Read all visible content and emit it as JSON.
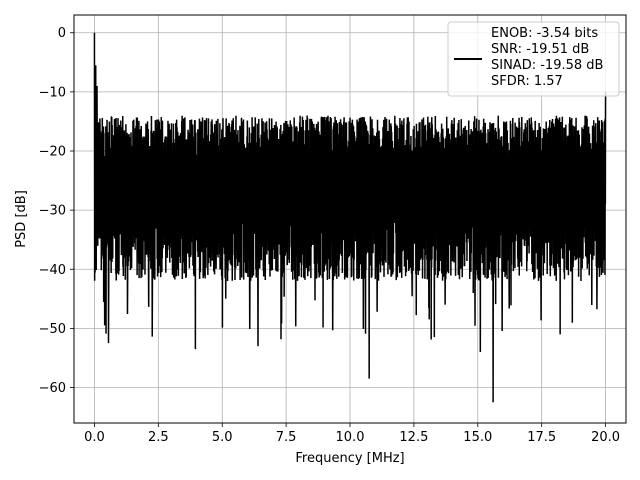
{
  "chart_data": {
    "type": "line",
    "xlabel": "Frequency [MHz]",
    "ylabel": "PSD [dB]",
    "xlim": [
      -0.8,
      20.8
    ],
    "ylim": [
      -66,
      3
    ],
    "xticks": [
      0.0,
      2.5,
      5.0,
      7.5,
      10.0,
      12.5,
      15.0,
      17.5,
      20.0
    ],
    "xtick_labels": [
      "0.0",
      "2.5",
      "5.0",
      "7.5",
      "10.0",
      "12.5",
      "15.0",
      "17.5",
      "20.0"
    ],
    "yticks": [
      0,
      -10,
      -20,
      -30,
      -40,
      -50,
      -60
    ],
    "ytick_labels": [
      "0",
      "−10",
      "−20",
      "−30",
      "−40",
      "−50",
      "−60"
    ],
    "grid": true,
    "legend_position": "top-right",
    "line_color": "#000000",
    "series": [
      {
        "legend": [
          "ENOB: -3.54 bits",
          "SNR: -19.51 dB",
          "SINAD: -19.58 dB",
          "SFDR: 1.57"
        ],
        "x_range": [
          0,
          20
        ],
        "noise_floor_upper_approx": -16,
        "noise_floor_lower_approx": -42,
        "peaks": [
          {
            "x": 0.0,
            "y": 0.0
          },
          {
            "x": 0.05,
            "y": -5.5
          },
          {
            "x": 0.1,
            "y": -9
          },
          {
            "x": 20.0,
            "y": -10
          },
          {
            "x": 0.4,
            "y": -49.5
          },
          {
            "x": 0.55,
            "y": -52.5
          },
          {
            "x": 3.95,
            "y": -53.5
          },
          {
            "x": 6.4,
            "y": -53.0
          },
          {
            "x": 10.75,
            "y": -58.5
          },
          {
            "x": 15.6,
            "y": -62.5
          },
          {
            "x": 15.1,
            "y": -54.0
          }
        ]
      }
    ]
  }
}
